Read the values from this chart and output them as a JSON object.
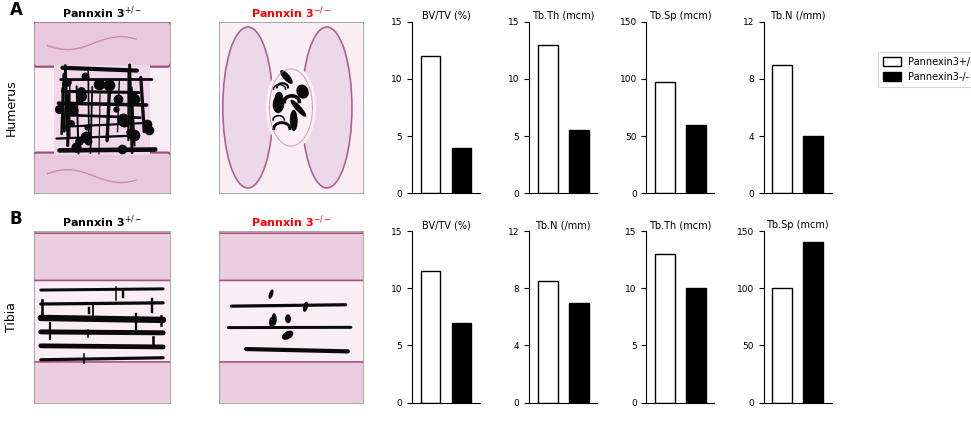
{
  "panel_A": {
    "label": "A",
    "tissue": "Humerus",
    "charts": [
      {
        "title": "BV/TV (%)",
        "ylim": [
          0,
          15
        ],
        "yticks": [
          0,
          5,
          10,
          15
        ],
        "white": 12.0,
        "black": 4.0
      },
      {
        "title": "Tb.Th (mcm)",
        "ylim": [
          0,
          15
        ],
        "yticks": [
          0,
          5,
          10,
          15
        ],
        "white": 13.0,
        "black": 5.5
      },
      {
        "title": "Tb.Sp (mcm)",
        "ylim": [
          0,
          150
        ],
        "yticks": [
          0,
          50,
          100,
          150
        ],
        "white": 97.0,
        "black": 60.0
      },
      {
        "title": "Tb.N (/mm)",
        "ylim": [
          0,
          12
        ],
        "yticks": [
          0,
          4,
          8,
          12
        ],
        "white": 9.0,
        "black": 4.0
      }
    ]
  },
  "panel_B": {
    "label": "B",
    "tissue": "Tibia",
    "charts": [
      {
        "title": "BV/TV (%)",
        "ylim": [
          0,
          15
        ],
        "yticks": [
          0,
          5,
          10,
          15
        ],
        "white": 11.5,
        "black": 7.0
      },
      {
        "title": "Tb.N (/mm)",
        "ylim": [
          0,
          12
        ],
        "yticks": [
          0,
          4,
          8,
          12
        ],
        "white": 8.5,
        "black": 7.0
      },
      {
        "title": "Tb.Th (mcm)",
        "ylim": [
          0,
          15
        ],
        "yticks": [
          0,
          5,
          10,
          15
        ],
        "white": 13.0,
        "black": 10.0
      },
      {
        "title": "Tb.Sp (mcm)",
        "ylim": [
          0,
          150
        ],
        "yticks": [
          0,
          50,
          100,
          150
        ],
        "white": 100.0,
        "black": 140.0
      }
    ]
  },
  "legend": {
    "white_label": "Pannexin3+/-",
    "black_label": "Pannexin3-/-"
  },
  "bg_color": "#ffffff",
  "tissue_bg": "#f5e8f0",
  "tissue_dark": "#2a1a2a"
}
